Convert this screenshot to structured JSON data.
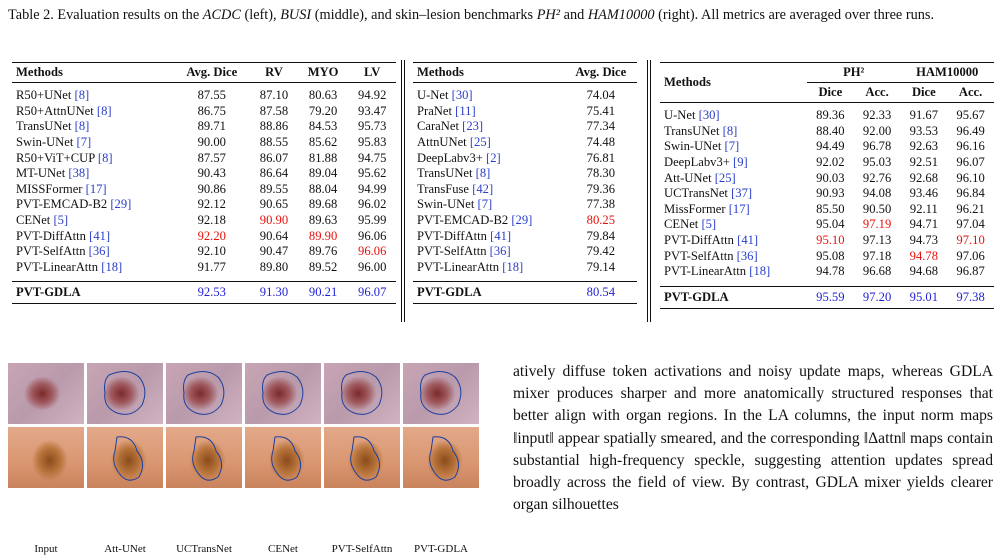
{
  "caption": {
    "parts": [
      "Table 2. Evaluation results on the ",
      "ACDC",
      " (left), ",
      "BUSI",
      " (middle), and skin–lesion benchmarks ",
      "PH²",
      " and ",
      "HAM10000",
      " (right). All metrics are averaged over three runs."
    ],
    "italic": [
      1,
      3,
      5,
      7
    ]
  },
  "colors": {
    "best_other": "#e8100b",
    "ours": "#1f1fd6",
    "ref": "#2a3ec8"
  },
  "tables": [
    {
      "headers": [
        "Methods",
        "Avg. Dice",
        "RV",
        "MYO",
        "LV"
      ],
      "rows": [
        {
          "method": "R50+UNet",
          "ref": "[8]",
          "values": [
            "87.55",
            "87.10",
            "80.63",
            "94.92"
          ]
        },
        {
          "method": "R50+AttnUNet",
          "ref": "[8]",
          "values": [
            "86.75",
            "87.58",
            "79.20",
            "93.47"
          ]
        },
        {
          "method": "TransUNet",
          "ref": "[8]",
          "values": [
            "89.71",
            "88.86",
            "84.53",
            "95.73"
          ]
        },
        {
          "method": "Swin-UNet",
          "ref": "[7]",
          "values": [
            "90.00",
            "88.55",
            "85.62",
            "95.83"
          ]
        },
        {
          "method": "R50+ViT+CUP",
          "ref": "[8]",
          "values": [
            "87.57",
            "86.07",
            "81.88",
            "94.75"
          ]
        },
        {
          "method": "MT-UNet",
          "ref": "[38]",
          "values": [
            "90.43",
            "86.64",
            "89.04",
            "95.62"
          ]
        },
        {
          "method": "MISSFormer",
          "ref": "[17]",
          "values": [
            "90.86",
            "89.55",
            "88.04",
            "94.99"
          ]
        },
        {
          "method": "PVT-EMCAD-B2",
          "ref": "[29]",
          "values": [
            "92.12",
            "90.65",
            "89.68",
            "96.02"
          ]
        },
        {
          "method": "CENet",
          "ref": "[5]",
          "values": [
            "92.18",
            "90.90",
            "89.63",
            "95.99"
          ]
        },
        {
          "method": "PVT-DiffAttn",
          "ref": "[41]",
          "values": [
            "92.20",
            "90.64",
            "89.90",
            "96.06"
          ]
        },
        {
          "method": "PVT-SelfAttn",
          "ref": "[36]",
          "values": [
            "92.10",
            "90.47",
            "89.76",
            "96.06"
          ]
        },
        {
          "method": "PVT-LinearAttn",
          "ref": "[18]",
          "values": [
            "91.77",
            "89.80",
            "89.52",
            "96.00"
          ]
        }
      ],
      "red": [
        [
          8,
          1
        ],
        [
          9,
          0
        ],
        [
          9,
          2
        ],
        [
          10,
          3
        ]
      ],
      "ours": {
        "method": "PVT-GDLA",
        "values": [
          "92.53",
          "91.30",
          "90.21",
          "96.07"
        ]
      }
    },
    {
      "headers": [
        "Methods",
        "Avg. Dice"
      ],
      "rows": [
        {
          "method": "U-Net",
          "ref": "[30]",
          "values": [
            "74.04"
          ]
        },
        {
          "method": "PraNet",
          "ref": "[11]",
          "values": [
            "75.41"
          ]
        },
        {
          "method": "CaraNet",
          "ref": "[23]",
          "values": [
            "77.34"
          ]
        },
        {
          "method": "AttnUNet",
          "ref": "[25]",
          "values": [
            "74.48"
          ]
        },
        {
          "method": "DeepLabv3+",
          "ref": "[2]",
          "values": [
            "76.81"
          ]
        },
        {
          "method": "TransUNet",
          "ref": "[8]",
          "values": [
            "78.30"
          ]
        },
        {
          "method": "TransFuse",
          "ref": "[42]",
          "values": [
            "79.36"
          ]
        },
        {
          "method": "Swin-UNet",
          "ref": "[7]",
          "values": [
            "77.38"
          ]
        },
        {
          "method": "PVT-EMCAD-B2",
          "ref": "[29]",
          "values": [
            "80.25"
          ]
        },
        {
          "method": "PVT-DiffAttn",
          "ref": "[41]",
          "values": [
            "79.84"
          ]
        },
        {
          "method": "PVT-SelfAttn",
          "ref": "[36]",
          "values": [
            "79.42"
          ]
        },
        {
          "method": "PVT-LinearAttn",
          "ref": "[18]",
          "values": [
            "79.14"
          ]
        }
      ],
      "red": [
        [
          8,
          0
        ]
      ],
      "ours": {
        "method": "PVT-GDLA",
        "values": [
          "80.54"
        ]
      }
    },
    {
      "headers": [
        "Methods"
      ],
      "groups": [
        "PH²",
        "HAM10000"
      ],
      "subheaders": [
        "Dice",
        "Acc.",
        "Dice",
        "Acc."
      ],
      "rows": [
        {
          "method": "U-Net",
          "ref": "[30]",
          "values": [
            "89.36",
            "92.33",
            "91.67",
            "95.67"
          ]
        },
        {
          "method": "TransUNet",
          "ref": "[8]",
          "values": [
            "88.40",
            "92.00",
            "93.53",
            "96.49"
          ]
        },
        {
          "method": "Swin-UNet",
          "ref": "[7]",
          "values": [
            "94.49",
            "96.78",
            "92.63",
            "96.16"
          ]
        },
        {
          "method": "DeepLabv3+",
          "ref": "[9]",
          "values": [
            "92.02",
            "95.03",
            "92.51",
            "96.07"
          ]
        },
        {
          "method": "Att-UNet",
          "ref": "[25]",
          "values": [
            "90.03",
            "92.76",
            "92.68",
            "96.10"
          ]
        },
        {
          "method": "UCTransNet",
          "ref": "[37]",
          "values": [
            "90.93",
            "94.08",
            "93.46",
            "96.84"
          ]
        },
        {
          "method": "MissFormer",
          "ref": "[17]",
          "values": [
            "85.50",
            "90.50",
            "92.11",
            "96.21"
          ]
        },
        {
          "method": "CENet",
          "ref": "[5]",
          "values": [
            "95.04",
            "97.19",
            "94.71",
            "97.04"
          ]
        },
        {
          "method": "PVT-DiffAttn",
          "ref": "[41]",
          "values": [
            "95.10",
            "97.13",
            "94.73",
            "97.10"
          ]
        },
        {
          "method": "PVT-SelfAttn",
          "ref": "[36]",
          "values": [
            "95.08",
            "97.18",
            "94.78",
            "97.06"
          ]
        },
        {
          "method": "PVT-LinearAttn",
          "ref": "[18]",
          "values": [
            "94.78",
            "96.68",
            "94.68",
            "96.87"
          ]
        }
      ],
      "red": [
        [
          7,
          1
        ],
        [
          8,
          0
        ],
        [
          8,
          3
        ],
        [
          9,
          2
        ]
      ],
      "ours": {
        "method": "PVT-GDLA",
        "values": [
          "95.59",
          "97.20",
          "95.01",
          "97.38"
        ]
      }
    }
  ],
  "figure": {
    "labels": [
      "Input",
      "Att-UNet",
      "UCTransNet",
      "CENet",
      "PVT-SelfAttn",
      "PVT-GDLA"
    ]
  },
  "paragraph": "atively diffuse token activations and noisy update maps, whereas GDLA mixer produces sharper and more anatomically structured responses that better align with organ regions. In the LA columns, the input norm maps ‖input‖ appear spatially smeared, and the corresponding ‖Δattn‖ maps contain substantial high-frequency speckle, suggesting attention updates spread broadly across the field of view. By contrast, GDLA mixer yields clearer organ silhouettes"
}
